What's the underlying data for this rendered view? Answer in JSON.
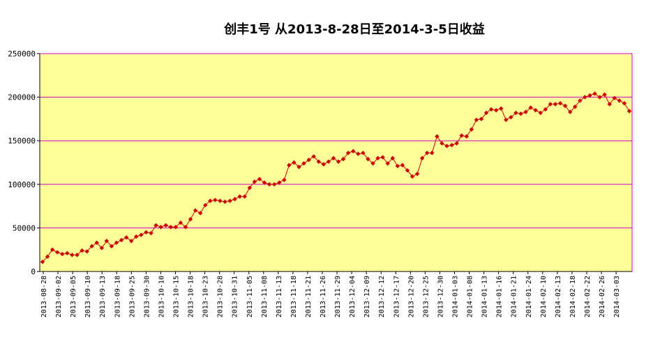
{
  "chart_data": {
    "type": "line",
    "title": "创丰1号  从2013-8-28日至2014-3-5日收益",
    "xlabel": "",
    "ylabel": "",
    "ylim": [
      0,
      250000
    ],
    "y_ticks": [
      "0",
      "50000",
      "100000",
      "150000",
      "200000",
      "250000"
    ],
    "grid": true,
    "legend": "none",
    "colors": {
      "plot_bg": "#ffff99",
      "grid": "#cc00cc",
      "series": "#cc0000"
    },
    "x_tick_labels": [
      "2013-08-28",
      "2013-09-02",
      "2013-09-05",
      "2013-09-10",
      "2013-09-13",
      "2013-09-18",
      "2013-09-25",
      "2013-09-30",
      "2013-10-10",
      "2013-10-15",
      "2013-10-18",
      "2013-10-23",
      "2013-10-28",
      "2013-10-31",
      "2013-11-05",
      "2013-11-08",
      "2013-11-13",
      "2013-11-18",
      "2013-11-21",
      "2013-11-26",
      "2013-11-29",
      "2013-12-04",
      "2013-12-09",
      "2013-12-12",
      "2013-12-17",
      "2013-12-20",
      "2013-12-25",
      "2013-12-30",
      "2014-01-03",
      "2014-01-08",
      "2014-01-13",
      "2014-01-16",
      "2014-01-21",
      "2014-01-24",
      "2014-02-10",
      "2014-02-13",
      "2014-02-18",
      "2014-02-22",
      "2014-02-26",
      "2014-03-03"
    ],
    "series": [
      {
        "values": [
          11000,
          17000,
          25000,
          22000,
          20000,
          21000,
          19000,
          19000,
          24000,
          23000,
          29000,
          33000,
          27000,
          35000,
          29000,
          33000,
          36000,
          39000,
          35000,
          40000,
          42000,
          45000,
          44000,
          53000,
          51000,
          53000,
          51000,
          51000,
          56000,
          51000,
          60000,
          70000,
          67000,
          76000,
          81000,
          82000,
          81000,
          80000,
          81000,
          83000,
          86000,
          86000,
          96000,
          103000,
          106000,
          102000,
          100000,
          100000,
          102000,
          105000,
          122000,
          125000,
          120000,
          124000,
          128000,
          132000,
          126000,
          123000,
          126000,
          130000,
          126000,
          129000,
          136000,
          138000,
          135000,
          136000,
          129000,
          124000,
          130000,
          131000,
          124000,
          130000,
          121000,
          122000,
          116000,
          109000,
          112000,
          130000,
          136000,
          136000,
          155000,
          147000,
          144000,
          145000,
          147000,
          156000,
          155000,
          163000,
          174000,
          175000,
          182000,
          186000,
          185000,
          187000,
          174000,
          177000,
          182000,
          181000,
          183000,
          188000,
          185000,
          182000,
          186000,
          192000,
          192000,
          193000,
          190000,
          183000,
          189000,
          196000,
          200000,
          202000,
          204000,
          200000,
          203000,
          192000,
          199000,
          196000,
          193000,
          184000
        ]
      }
    ]
  }
}
